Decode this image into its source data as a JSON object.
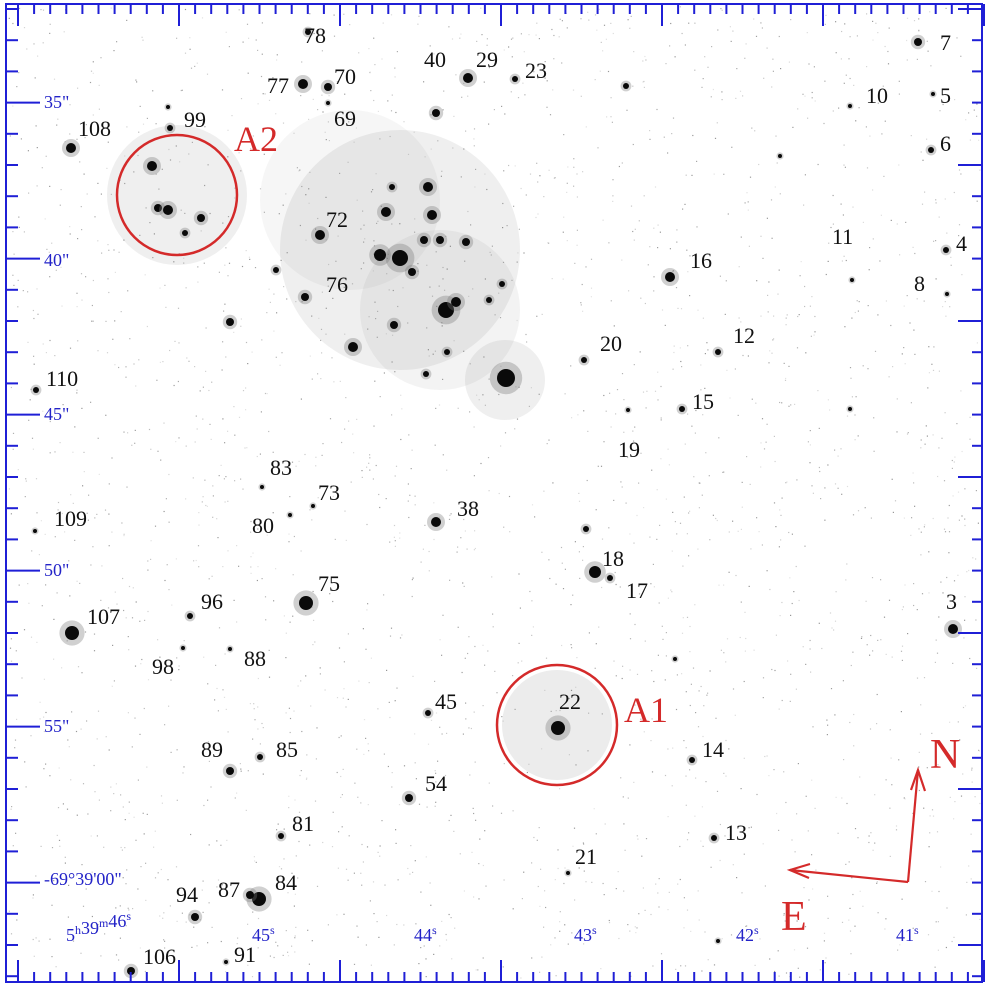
{
  "image": {
    "frame_color": "#1f1fd6",
    "label_color": "#111111",
    "marker_color": "#d42a2a",
    "coord_color": "#2323c8"
  },
  "dec_labels": [
    "35\"",
    "40\"",
    "45\"",
    "50\"",
    "55\"",
    "-69°39'00\""
  ],
  "ra_labels": [
    "5h39m46s",
    "45s",
    "44s",
    "43s",
    "42s",
    "41s"
  ],
  "regions": [
    {
      "id": "A2",
      "label": "A2"
    },
    {
      "id": "A1",
      "label": "A1"
    }
  ],
  "compass": {
    "north": "N",
    "east": "E"
  },
  "star_labels": [
    "78",
    "77",
    "70",
    "40",
    "29",
    "23",
    "7",
    "10",
    "5",
    "6",
    "108",
    "99",
    "69",
    "72",
    "11",
    "4",
    "16",
    "8",
    "76",
    "20",
    "12",
    "110",
    "15",
    "19",
    "83",
    "73",
    "109",
    "80",
    "38",
    "18",
    "17",
    "75",
    "96",
    "107",
    "3",
    "98",
    "88",
    "45",
    "22",
    "89",
    "85",
    "14",
    "54",
    "81",
    "13",
    "21",
    "94",
    "87",
    "84",
    "106",
    "91"
  ]
}
